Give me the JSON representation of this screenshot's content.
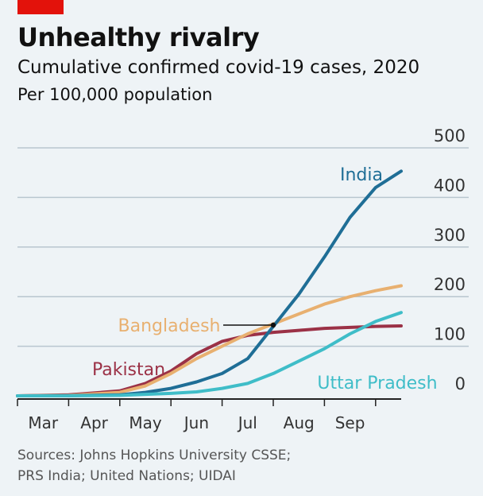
{
  "header": {
    "title": "Unhealthy rivalry",
    "subtitle": "Cumulative confirmed covid-19 cases, 2020",
    "unit": "Per 100,000 population"
  },
  "footer": {
    "source_line1": "Sources: Johns Hopkins University CSSE;",
    "source_line2": "PRS India; United Nations; UIDAI"
  },
  "colors": {
    "brand_red": "#e3120b",
    "grid": "#b8c6cf",
    "axis": "#222222",
    "tick_text": "#333333"
  },
  "chart_data": {
    "type": "line",
    "x_unit": "month of 2020",
    "xlim": [
      2,
      9.5
    ],
    "ylim": [
      0,
      500
    ],
    "yticks": [
      0,
      100,
      200,
      300,
      400,
      500
    ],
    "month_ticks": [
      2,
      3,
      4,
      5,
      6,
      7,
      8,
      9
    ],
    "month_labels": [
      "Mar",
      "Apr",
      "May",
      "Jun",
      "Jul",
      "Aug",
      "Sep"
    ],
    "grid": true,
    "series": [
      {
        "name": "Pakistan",
        "color": "#9b3146",
        "points": [
          [
            2,
            0
          ],
          [
            3,
            2
          ],
          [
            4,
            10
          ],
          [
            4.5,
            25
          ],
          [
            5,
            50
          ],
          [
            5.5,
            85
          ],
          [
            6,
            110
          ],
          [
            6.5,
            122
          ],
          [
            7,
            128
          ],
          [
            7.5,
            132
          ],
          [
            8,
            136
          ],
          [
            8.5,
            138
          ],
          [
            9,
            140
          ],
          [
            9.5,
            141
          ]
        ]
      },
      {
        "name": "Bangladesh",
        "color": "#e8b070",
        "points": [
          [
            2,
            0
          ],
          [
            3,
            1
          ],
          [
            4,
            7
          ],
          [
            4.5,
            20
          ],
          [
            5,
            45
          ],
          [
            5.5,
            75
          ],
          [
            6,
            100
          ],
          [
            6.5,
            125
          ],
          [
            7,
            145
          ],
          [
            7.5,
            165
          ],
          [
            8,
            185
          ],
          [
            8.5,
            200
          ],
          [
            9,
            212
          ],
          [
            9.5,
            222
          ]
        ]
      },
      {
        "name": "India",
        "color": "#1f6e96",
        "points": [
          [
            2,
            0
          ],
          [
            3,
            0.5
          ],
          [
            4,
            2
          ],
          [
            4.5,
            7
          ],
          [
            5,
            15
          ],
          [
            5.5,
            28
          ],
          [
            6,
            45
          ],
          [
            6.5,
            75
          ],
          [
            7,
            140
          ],
          [
            7.5,
            205
          ],
          [
            8,
            280
          ],
          [
            8.5,
            360
          ],
          [
            9,
            420
          ],
          [
            9.5,
            453
          ]
        ]
      },
      {
        "name": "Uttar Pradesh",
        "color": "#3fbdc8",
        "points": [
          [
            2,
            0
          ],
          [
            3,
            0
          ],
          [
            4,
            1
          ],
          [
            4.5,
            3
          ],
          [
            5,
            5
          ],
          [
            5.5,
            8
          ],
          [
            6,
            15
          ],
          [
            6.5,
            25
          ],
          [
            7,
            45
          ],
          [
            7.5,
            70
          ],
          [
            8,
            95
          ],
          [
            8.5,
            125
          ],
          [
            9,
            150
          ],
          [
            9.5,
            168
          ]
        ]
      }
    ],
    "annotation": {
      "series": "Bangladesh",
      "x": 7,
      "y": 145
    }
  }
}
